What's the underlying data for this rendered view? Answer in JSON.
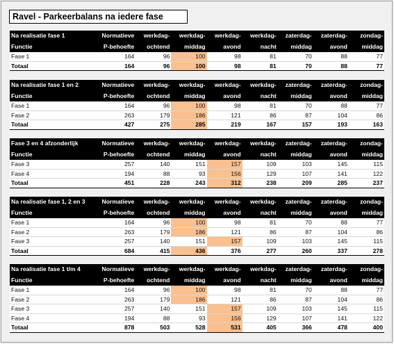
{
  "title": "Ravel - Parkeerbalans na iedere fase",
  "columns_top": [
    "Normatieve",
    "werkdag-",
    "werkdag-",
    "werkdag-",
    "werkdag-",
    "zaterdag-",
    "zaterdag-",
    "zondag-"
  ],
  "columns_bottom": [
    "P-behoefte",
    "ochtend",
    "middag",
    "avond",
    "nacht",
    "middag",
    "avond",
    "middag"
  ],
  "highlight_color": "#fac090",
  "blocks": [
    {
      "heading": "Na realisatie fase 1",
      "sub": "Functie",
      "rows": [
        {
          "label": "Fase 1",
          "values": [
            "164",
            "96",
            "100",
            "98",
            "81",
            "70",
            "88",
            "77"
          ],
          "hl": [
            2
          ]
        }
      ],
      "total": {
        "label": "Totaal",
        "values": [
          "164",
          "96",
          "100",
          "98",
          "81",
          "70",
          "88",
          "77"
        ],
        "hl": [
          2
        ]
      }
    },
    {
      "heading": "Na realisatie fase 1 en 2",
      "sub": "Functie",
      "rows": [
        {
          "label": "Fase 1",
          "values": [
            "164",
            "96",
            "100",
            "98",
            "81",
            "70",
            "88",
            "77"
          ],
          "hl": [
            2
          ]
        },
        {
          "label": "Fase 2",
          "values": [
            "263",
            "179",
            "186",
            "121",
            "86",
            "87",
            "104",
            "86"
          ],
          "hl": [
            2
          ]
        }
      ],
      "total": {
        "label": "Totaal",
        "values": [
          "427",
          "275",
          "285",
          "219",
          "167",
          "157",
          "193",
          "163"
        ],
        "hl": [
          2
        ]
      }
    },
    {
      "heading": "Fase 3 en 4 afzonderlijk",
      "sub": "Functie",
      "rows": [
        {
          "label": "Fase 3",
          "values": [
            "257",
            "140",
            "151",
            "157",
            "109",
            "103",
            "145",
            "115"
          ],
          "hl": [
            3
          ]
        },
        {
          "label": "Fase 4",
          "values": [
            "194",
            "88",
            "93",
            "156",
            "129",
            "107",
            "141",
            "122"
          ],
          "hl": [
            3
          ]
        }
      ],
      "total": {
        "label": "Totaal",
        "values": [
          "451",
          "228",
          "243",
          "312",
          "238",
          "209",
          "285",
          "237"
        ],
        "hl": [
          3
        ]
      }
    },
    {
      "heading": "Na realisatie fase 1, 2 en 3",
      "sub": "Functie",
      "rows": [
        {
          "label": "Fase 1",
          "values": [
            "164",
            "96",
            "100",
            "98",
            "81",
            "70",
            "88",
            "77"
          ],
          "hl": [
            2
          ]
        },
        {
          "label": "Fase 2",
          "values": [
            "263",
            "179",
            "186",
            "121",
            "86",
            "87",
            "104",
            "86"
          ],
          "hl": [
            2
          ]
        },
        {
          "label": "Fase 3",
          "values": [
            "257",
            "140",
            "151",
            "157",
            "109",
            "103",
            "145",
            "115"
          ],
          "hl": [
            3
          ]
        }
      ],
      "total": {
        "label": "Totaal",
        "values": [
          "684",
          "415",
          "436",
          "376",
          "277",
          "260",
          "337",
          "278"
        ],
        "hl": [
          2
        ]
      }
    },
    {
      "heading": "Na realisatie fase 1 t/m 4",
      "sub": "Functie",
      "rows": [
        {
          "label": "Fase 1",
          "values": [
            "164",
            "96",
            "100",
            "98",
            "81",
            "70",
            "88",
            "77"
          ],
          "hl": [
            2
          ]
        },
        {
          "label": "Fase 2",
          "values": [
            "263",
            "179",
            "186",
            "121",
            "86",
            "87",
            "104",
            "86"
          ],
          "hl": [
            2
          ]
        },
        {
          "label": "Fase 3",
          "values": [
            "257",
            "140",
            "151",
            "157",
            "109",
            "103",
            "145",
            "115"
          ],
          "hl": [
            3
          ]
        },
        {
          "label": "Fase 4",
          "values": [
            "194",
            "88",
            "93",
            "156",
            "129",
            "107",
            "141",
            "122"
          ],
          "hl": [
            3
          ]
        }
      ],
      "total": {
        "label": "Totaal",
        "values": [
          "878",
          "503",
          "528",
          "531",
          "405",
          "366",
          "478",
          "400"
        ],
        "hl": [
          3
        ]
      }
    }
  ]
}
